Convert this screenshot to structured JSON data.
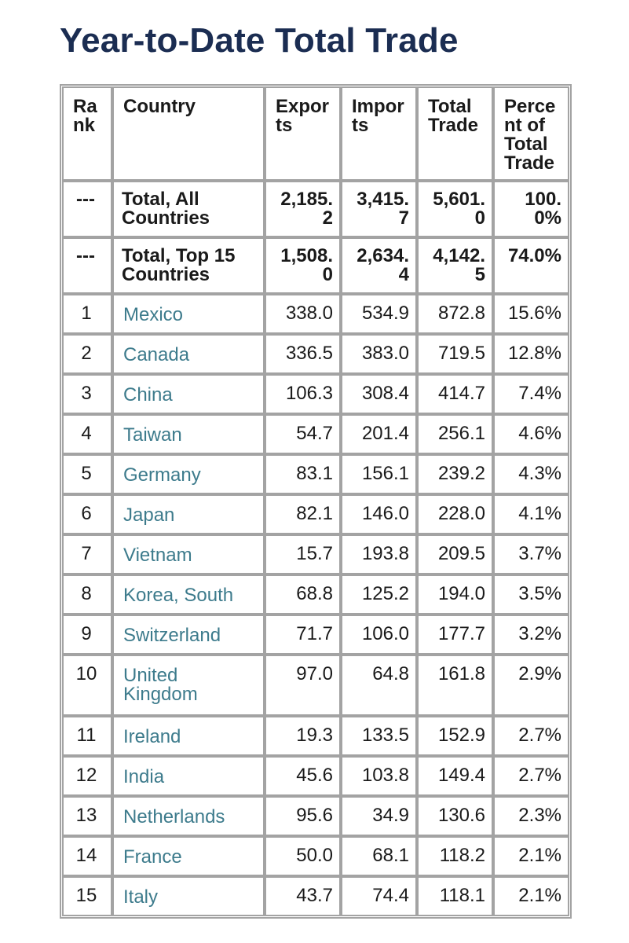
{
  "title": "Year-to-Date Total Trade",
  "table": {
    "headers": [
      "Rank",
      "Country",
      "Exports",
      "Imports",
      "Total Trade",
      "Percent of Total Trade"
    ],
    "summary_rows": [
      {
        "rank": "---",
        "country": "Total, All Countries",
        "exports": "2,185.2",
        "imports": "3,415.7",
        "total": "5,601.0",
        "percent": "100.0%"
      },
      {
        "rank": "---",
        "country": "Total, Top 15 Countries",
        "exports": "1,508.0",
        "imports": "2,634.4",
        "total": "4,142.5",
        "percent": "74.0%"
      }
    ],
    "rows": [
      {
        "rank": "1",
        "country": "Mexico",
        "exports": "338.0",
        "imports": "534.9",
        "total": "872.8",
        "percent": "15.6%"
      },
      {
        "rank": "2",
        "country": "Canada",
        "exports": "336.5",
        "imports": "383.0",
        "total": "719.5",
        "percent": "12.8%"
      },
      {
        "rank": "3",
        "country": "China",
        "exports": "106.3",
        "imports": "308.4",
        "total": "414.7",
        "percent": "7.4%"
      },
      {
        "rank": "4",
        "country": "Taiwan",
        "exports": "54.7",
        "imports": "201.4",
        "total": "256.1",
        "percent": "4.6%"
      },
      {
        "rank": "5",
        "country": "Germany",
        "exports": "83.1",
        "imports": "156.1",
        "total": "239.2",
        "percent": "4.3%"
      },
      {
        "rank": "6",
        "country": "Japan",
        "exports": "82.1",
        "imports": "146.0",
        "total": "228.0",
        "percent": "4.1%"
      },
      {
        "rank": "7",
        "country": "Vietnam",
        "exports": "15.7",
        "imports": "193.8",
        "total": "209.5",
        "percent": "3.7%"
      },
      {
        "rank": "8",
        "country": "Korea, South",
        "exports": "68.8",
        "imports": "125.2",
        "total": "194.0",
        "percent": "3.5%"
      },
      {
        "rank": "9",
        "country": "Switzerland",
        "exports": "71.7",
        "imports": "106.0",
        "total": "177.7",
        "percent": "3.2%"
      },
      {
        "rank": "10",
        "country": "United Kingdom",
        "exports": "97.0",
        "imports": "64.8",
        "total": "161.8",
        "percent": "2.9%"
      },
      {
        "rank": "11",
        "country": "Ireland",
        "exports": "19.3",
        "imports": "133.5",
        "total": "152.9",
        "percent": "2.7%"
      },
      {
        "rank": "12",
        "country": "India",
        "exports": "45.6",
        "imports": "103.8",
        "total": "149.4",
        "percent": "2.7%"
      },
      {
        "rank": "13",
        "country": "Netherlands",
        "exports": "95.6",
        "imports": "34.9",
        "total": "130.6",
        "percent": "2.3%"
      },
      {
        "rank": "14",
        "country": "France",
        "exports": "50.0",
        "imports": "68.1",
        "total": "118.2",
        "percent": "2.1%"
      },
      {
        "rank": "15",
        "country": "Italy",
        "exports": "43.7",
        "imports": "74.4",
        "total": "118.1",
        "percent": "2.1%"
      }
    ]
  },
  "colors": {
    "title": "#1b2d52",
    "country_link": "#3d7b8c",
    "border": "#a3a3a3"
  }
}
